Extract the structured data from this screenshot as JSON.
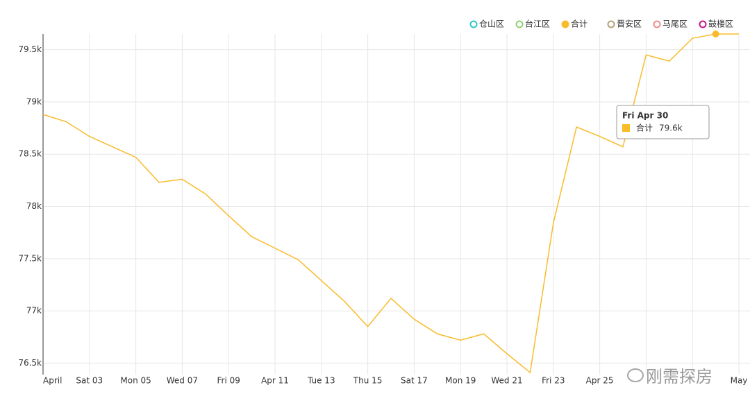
{
  "chart_data": {
    "type": "line",
    "categories": [
      "April",
      null,
      "Sat 03",
      null,
      "Mon 05",
      null,
      "Wed 07",
      null,
      "Fri 09",
      null,
      "Apr 11",
      null,
      "Tue 13",
      null,
      "Thu 15",
      null,
      "Sat 17",
      null,
      "Mon 19",
      null,
      "Wed 21",
      null,
      "Fri 23",
      null,
      "Apr 25",
      null,
      null,
      null,
      null,
      null,
      "May"
    ],
    "series": [
      {
        "name": "仓山区",
        "color": "#2ec7c9",
        "visible": false
      },
      {
        "name": "台江区",
        "color": "#8fd16f",
        "visible": false
      },
      {
        "name": "合计",
        "color": "#f9bb2a",
        "visible": true,
        "values": [
          78880,
          78810,
          78670,
          78570,
          78470,
          78230,
          78260,
          78120,
          77910,
          77710,
          77600,
          77490,
          77290,
          77090,
          76850,
          77120,
          76920,
          76780,
          76720,
          76780,
          76590,
          76410,
          77840,
          78760,
          78670,
          78570,
          79450,
          79390,
          79610,
          79650,
          79650
        ]
      },
      {
        "name": "晋安区",
        "color": "#b6a27a",
        "visible": false
      },
      {
        "name": "马尾区",
        "color": "#f08c8c",
        "visible": false
      },
      {
        "name": "鼓楼区",
        "color": "#c71585",
        "visible": false
      }
    ],
    "ylim": [
      76390,
      79650
    ],
    "yticks": [
      {
        "value": 76500,
        "label": "76.5k"
      },
      {
        "value": 77000,
        "label": "77k"
      },
      {
        "value": 77500,
        "label": "77.5k"
      },
      {
        "value": 78000,
        "label": "78k"
      },
      {
        "value": 78500,
        "label": "78.5k"
      },
      {
        "value": 79000,
        "label": "79k"
      },
      {
        "value": 79500,
        "label": "79.5k"
      }
    ],
    "grid": true,
    "tooltip": {
      "title": "Fri Apr 30",
      "value_label": "79.6k"
    },
    "watermark": "刚需探房"
  }
}
